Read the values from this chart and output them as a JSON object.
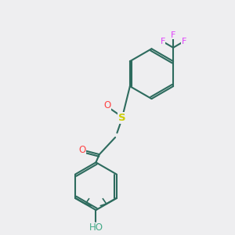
{
  "background_color": "#eeeef0",
  "bond_color": "#2d6b5e",
  "atom_colors": {
    "F": "#e040fb",
    "O_carbonyl": "#ff4444",
    "O_sulfinyl": "#ff4444",
    "S": "#cccc00",
    "HO": "#44aa88"
  },
  "figsize": [
    3.0,
    3.0
  ],
  "dpi": 100
}
